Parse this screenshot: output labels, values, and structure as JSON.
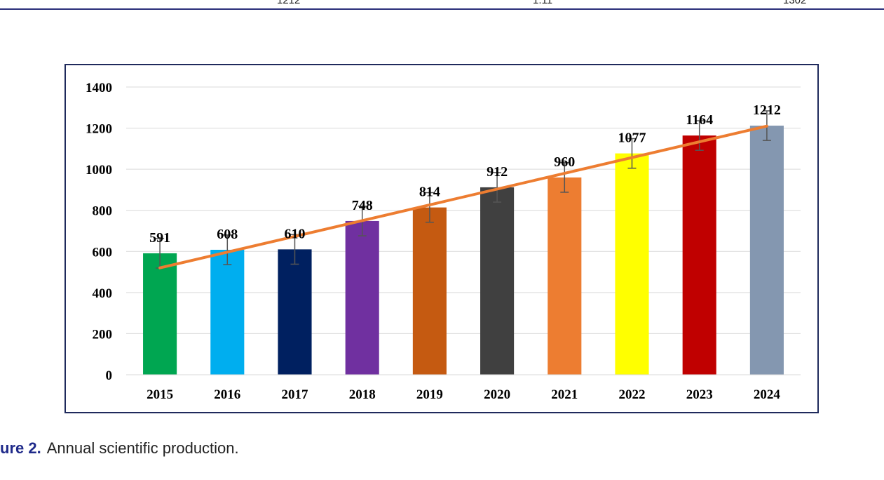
{
  "header_row": {
    "cells": [
      "1212",
      "1.11",
      "1302"
    ]
  },
  "caption": {
    "label": "ure 2.",
    "text": "Annual scientific production."
  },
  "chart_data": {
    "type": "bar",
    "title": "",
    "xlabel": "",
    "ylabel": "",
    "categories": [
      "2015",
      "2016",
      "2017",
      "2018",
      "2019",
      "2020",
      "2021",
      "2022",
      "2023",
      "2024"
    ],
    "values": [
      591,
      608,
      610,
      748,
      814,
      912,
      960,
      1077,
      1164,
      1212
    ],
    "data_labels": [
      "591",
      "608",
      "610",
      "748",
      "814",
      "912",
      "960",
      "1077",
      "1164",
      "1212"
    ],
    "bar_colors": [
      "#00a651",
      "#00aeef",
      "#002060",
      "#7030a0",
      "#c55a11",
      "#404040",
      "#ed7d31",
      "#ffff00",
      "#c00000",
      "#8497b0"
    ],
    "error_bars": true,
    "error_margin": 72,
    "trendline": {
      "type": "linear",
      "color": "#ed7d31",
      "start": 520,
      "end": 1210
    },
    "ylim": [
      0,
      1400
    ],
    "yticks": [
      "0",
      "200",
      "400",
      "600",
      "800",
      "1000",
      "1200",
      "1400"
    ],
    "ytick_values": [
      0,
      200,
      400,
      600,
      800,
      1000,
      1200,
      1400
    ],
    "grid": true,
    "legend": "none"
  }
}
